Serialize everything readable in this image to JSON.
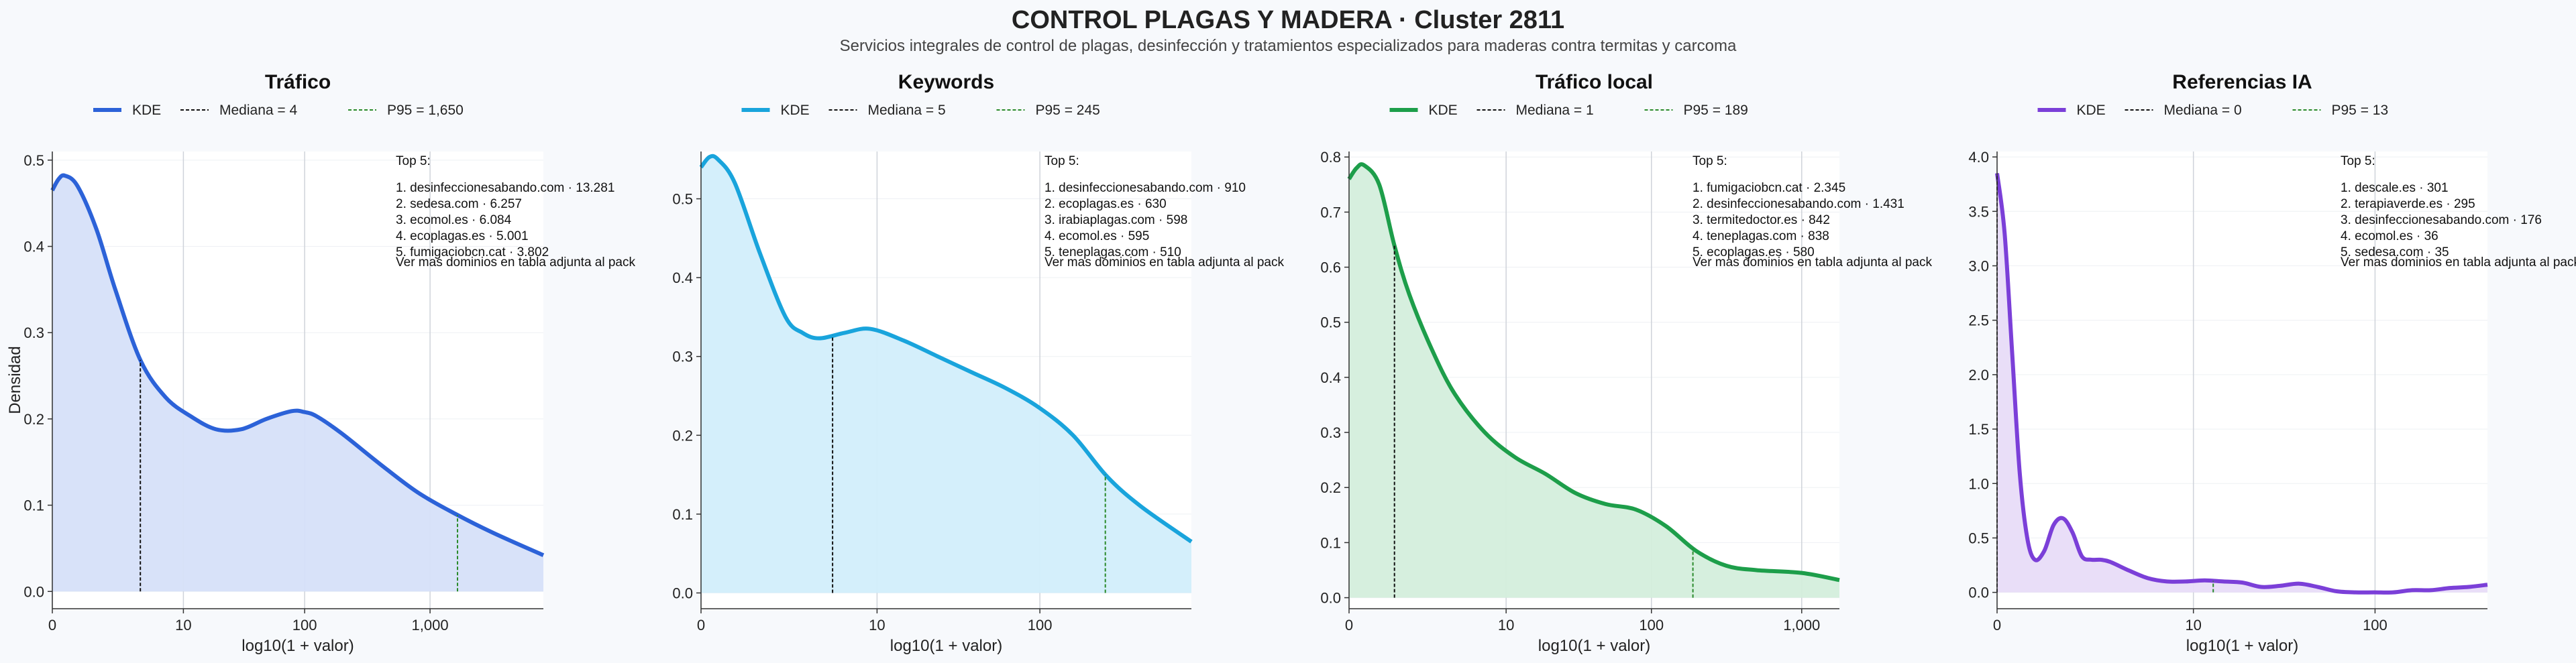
{
  "header": {
    "title": "CONTROL PLAGAS Y MADERA · Cluster 2811",
    "subtitle": "Servicios integrales de control de plagas, desinfección y tratamientos especializados para maderas contra termitas y carcoma"
  },
  "chart_data": [
    {
      "type": "area",
      "title": "Tráfico",
      "xlabel": "log10(1 + valor)",
      "ylabel": "Densidad",
      "xlim": [
        0,
        3.9
      ],
      "ylim": [
        -0.02,
        0.51
      ],
      "yticks": [
        0,
        0.1,
        0.2,
        0.3,
        0.4,
        0.5
      ],
      "ytick_labels": [
        "0.0",
        "0.1",
        "0.2",
        "0.3",
        "0.4",
        "0.5"
      ],
      "xticks": [
        0,
        1.041,
        2.004,
        3.0
      ],
      "xtick_labels": [
        "0",
        "10",
        "100",
        "1,000"
      ],
      "color": "#2c62d8",
      "fill": "#d6e0f9",
      "legend": [
        "KDE",
        "Mediana = 4",
        "P95 = 1,650"
      ],
      "median_x": 0.699,
      "p95_x": 3.218,
      "series": [
        {
          "x": [
            0,
            0.05,
            0.1,
            0.2,
            0.35,
            0.5,
            0.7,
            0.9,
            1.1,
            1.3,
            1.5,
            1.7,
            1.9,
            2.0,
            2.1,
            2.3,
            2.6,
            2.9,
            3.2,
            3.5,
            3.9
          ],
          "y": [
            0.465,
            0.478,
            0.482,
            0.47,
            0.42,
            0.35,
            0.268,
            0.225,
            0.203,
            0.188,
            0.188,
            0.2,
            0.209,
            0.208,
            0.203,
            0.183,
            0.148,
            0.115,
            0.09,
            0.068,
            0.042
          ]
        }
      ],
      "top_title": "Top 5:",
      "top": [
        "1. desinfeccionesabando.com · 13.281",
        "2. sedesa.com · 6.257",
        "3. ecomol.es · 6.084",
        "4. ecoplagas.es · 5.001",
        "5. fumigaciobcn.cat · 3.802"
      ],
      "note": "Ver mas dominios en tabla adjunta al pack"
    },
    {
      "type": "area",
      "title": "Keywords",
      "xlabel": "log10(1 + valor)",
      "ylabel": "",
      "xlim": [
        0,
        2.9
      ],
      "ylim": [
        -0.02,
        0.56
      ],
      "yticks": [
        0,
        0.1,
        0.2,
        0.3,
        0.4,
        0.5
      ],
      "ytick_labels": [
        "0.0",
        "0.1",
        "0.2",
        "0.3",
        "0.4",
        "0.5"
      ],
      "xticks": [
        0,
        1.041,
        2.004
      ],
      "xtick_labels": [
        "0",
        "10",
        "100"
      ],
      "color": "#19a4dc",
      "fill": "#d2eefb",
      "legend": [
        "KDE",
        "Mediana = 5",
        "P95 = 245"
      ],
      "median_x": 0.778,
      "p95_x": 2.391,
      "series": [
        {
          "x": [
            0,
            0.05,
            0.1,
            0.2,
            0.35,
            0.5,
            0.6,
            0.7,
            0.85,
            1.0,
            1.2,
            1.4,
            1.6,
            1.8,
            2.0,
            2.2,
            2.4,
            2.6,
            2.9
          ],
          "y": [
            0.54,
            0.553,
            0.55,
            0.52,
            0.43,
            0.35,
            0.33,
            0.323,
            0.33,
            0.335,
            0.32,
            0.3,
            0.28,
            0.26,
            0.235,
            0.2,
            0.148,
            0.11,
            0.065
          ]
        }
      ],
      "top_title": "Top 5:",
      "top": [
        "1. desinfeccionesabando.com · 910",
        "2. ecoplagas.es · 630",
        "3. irabiaplagas.com · 598",
        "4. ecomol.es · 595",
        "5. teneplagas.com · 510"
      ],
      "note": "Ver mas dominios en tabla adjunta al pack"
    },
    {
      "type": "area",
      "title": "Tráfico local",
      "xlabel": "log10(1 + valor)",
      "ylabel": "",
      "xlim": [
        0,
        3.25
      ],
      "ylim": [
        -0.02,
        0.81
      ],
      "yticks": [
        0,
        0.1,
        0.2,
        0.3,
        0.4,
        0.5,
        0.6,
        0.7,
        0.8
      ],
      "ytick_labels": [
        "0.0",
        "0.1",
        "0.2",
        "0.3",
        "0.4",
        "0.5",
        "0.6",
        "0.7",
        "0.8"
      ],
      "xticks": [
        0,
        1.041,
        2.004,
        3.0
      ],
      "xtick_labels": [
        "0",
        "10",
        "100",
        "1,000"
      ],
      "color": "#1d9e4a",
      "fill": "#d4eedc",
      "legend": [
        "KDE",
        "Mediana = 1",
        "P95 = 189"
      ],
      "median_x": 0.301,
      "p95_x": 2.279,
      "series": [
        {
          "x": [
            0,
            0.05,
            0.1,
            0.2,
            0.3,
            0.4,
            0.55,
            0.7,
            0.9,
            1.1,
            1.3,
            1.5,
            1.7,
            1.9,
            2.1,
            2.3,
            2.5,
            2.7,
            3.0,
            3.25
          ],
          "y": [
            0.76,
            0.78,
            0.785,
            0.75,
            0.64,
            0.55,
            0.45,
            0.37,
            0.3,
            0.255,
            0.225,
            0.19,
            0.17,
            0.16,
            0.13,
            0.085,
            0.058,
            0.05,
            0.045,
            0.032
          ]
        }
      ],
      "top_title": "Top 5:",
      "top": [
        "1. fumigaciobcn.cat · 2.345",
        "2. desinfeccionesabando.com · 1.431",
        "3. termitedoctor.es · 842",
        "4. teneplagas.com · 838",
        "5. ecoplagas.es · 580"
      ],
      "note": "Ver mas dominios en tabla adjunta al pack"
    },
    {
      "type": "area",
      "title": "Referencias IA",
      "xlabel": "log10(1 + valor)",
      "ylabel": "",
      "xlim": [
        0,
        2.6
      ],
      "ylim": [
        -0.15,
        4.05
      ],
      "yticks": [
        0,
        0.5,
        1,
        1.5,
        2,
        2.5,
        3,
        3.5,
        4
      ],
      "ytick_labels": [
        "0.0",
        "0.5",
        "1.0",
        "1.5",
        "2.0",
        "2.5",
        "3.0",
        "3.5",
        "4.0"
      ],
      "xticks": [
        0,
        1.041,
        2.004
      ],
      "xtick_labels": [
        "0",
        "10",
        "100"
      ],
      "color": "#7b3fd8",
      "fill": "#e8dcf8",
      "legend": [
        "KDE",
        "Mediana = 0",
        "P95 = 13"
      ],
      "median_x": 0,
      "p95_x": 1.146,
      "series": [
        {
          "x": [
            0,
            0.04,
            0.08,
            0.12,
            0.16,
            0.2,
            0.25,
            0.3,
            0.35,
            0.4,
            0.45,
            0.5,
            0.55,
            0.6,
            0.7,
            0.8,
            0.9,
            1.0,
            1.1,
            1.2,
            1.3,
            1.4,
            1.5,
            1.6,
            1.7,
            1.8,
            1.9,
            2.0,
            2.1,
            2.2,
            2.3,
            2.4,
            2.5,
            2.6
          ],
          "y": [
            3.85,
            3.3,
            2.2,
            1.1,
            0.5,
            0.3,
            0.38,
            0.62,
            0.68,
            0.55,
            0.33,
            0.3,
            0.3,
            0.28,
            0.2,
            0.13,
            0.1,
            0.1,
            0.11,
            0.1,
            0.09,
            0.05,
            0.06,
            0.08,
            0.05,
            0.01,
            0.0,
            0.0,
            0.0,
            0.02,
            0.02,
            0.04,
            0.05,
            0.07
          ]
        }
      ],
      "top_title": "Top 5:",
      "top": [
        "1. descale.es · 301",
        "2. terapiaverde.es · 295",
        "3. desinfeccionesabando.com · 176",
        "4. ecomol.es · 36",
        "5. sedesa.com · 35"
      ],
      "note": "Ver mas dominios en tabla adjunta al pack"
    }
  ]
}
